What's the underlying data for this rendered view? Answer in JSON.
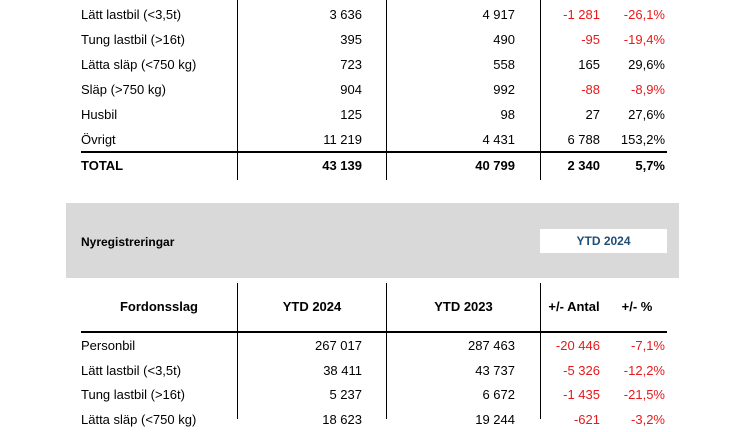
{
  "top_table": {
    "rows": [
      {
        "name": "Lätt lastbil (<3,5t)",
        "v2024": "3 636",
        "v2023": "4 917",
        "antal": "-1 281",
        "pct": "-26,1%",
        "antal_neg": true,
        "pct_neg": true
      },
      {
        "name": "Tung lastbil (>16t)",
        "v2024": "395",
        "v2023": "490",
        "antal": "-95",
        "pct": "-19,4%",
        "antal_neg": true,
        "pct_neg": true
      },
      {
        "name": "Lätta släp (<750 kg)",
        "v2024": "723",
        "v2023": "558",
        "antal": "165",
        "pct": "29,6%",
        "antal_neg": false,
        "pct_neg": false
      },
      {
        "name": "Släp (>750 kg)",
        "v2024": "904",
        "v2023": "992",
        "antal": "-88",
        "pct": "-8,9%",
        "antal_neg": true,
        "pct_neg": true
      },
      {
        "name": "Husbil",
        "v2024": "125",
        "v2023": "98",
        "antal": "27",
        "pct": "27,6%",
        "antal_neg": false,
        "pct_neg": false
      },
      {
        "name": "Övrigt",
        "v2024": "11 219",
        "v2023": "4 431",
        "antal": "6 788",
        "pct": "153,2%",
        "antal_neg": false,
        "pct_neg": false
      }
    ],
    "total": {
      "name": "TOTAL",
      "v2024": "43 139",
      "v2023": "40 799",
      "antal": "2 340",
      "pct": "5,7%"
    }
  },
  "section": {
    "title": "Nyregistreringar",
    "period_badge": "YTD 2024"
  },
  "bottom_table": {
    "headers": {
      "type": "Fordonsslag",
      "col1": "YTD 2024",
      "col2": "YTD 2023",
      "col3": "+/- Antal",
      "col4": "+/- %"
    },
    "rows": [
      {
        "name": "Personbil",
        "v2024": "267 017",
        "v2023": "287 463",
        "antal": "-20 446",
        "pct": "-7,1%",
        "antal_neg": true,
        "pct_neg": true
      },
      {
        "name": "Lätt lastbil (<3,5t)",
        "v2024": "38 411",
        "v2023": "43 737",
        "antal": "-5 326",
        "pct": "-12,2%",
        "antal_neg": true,
        "pct_neg": true
      },
      {
        "name": "Tung lastbil (>16t)",
        "v2024": "5 237",
        "v2023": "6 672",
        "antal": "-1 435",
        "pct": "-21,5%",
        "antal_neg": true,
        "pct_neg": true
      },
      {
        "name": "Lätta släp (<750 kg)",
        "v2024": "18 623",
        "v2023": "19 244",
        "antal": "-621",
        "pct": "-3,2%",
        "antal_neg": true,
        "pct_neg": true
      }
    ]
  },
  "colors": {
    "negative": "#e8191b",
    "badge_text": "#1f4e79",
    "band": "#d9d9d9"
  }
}
